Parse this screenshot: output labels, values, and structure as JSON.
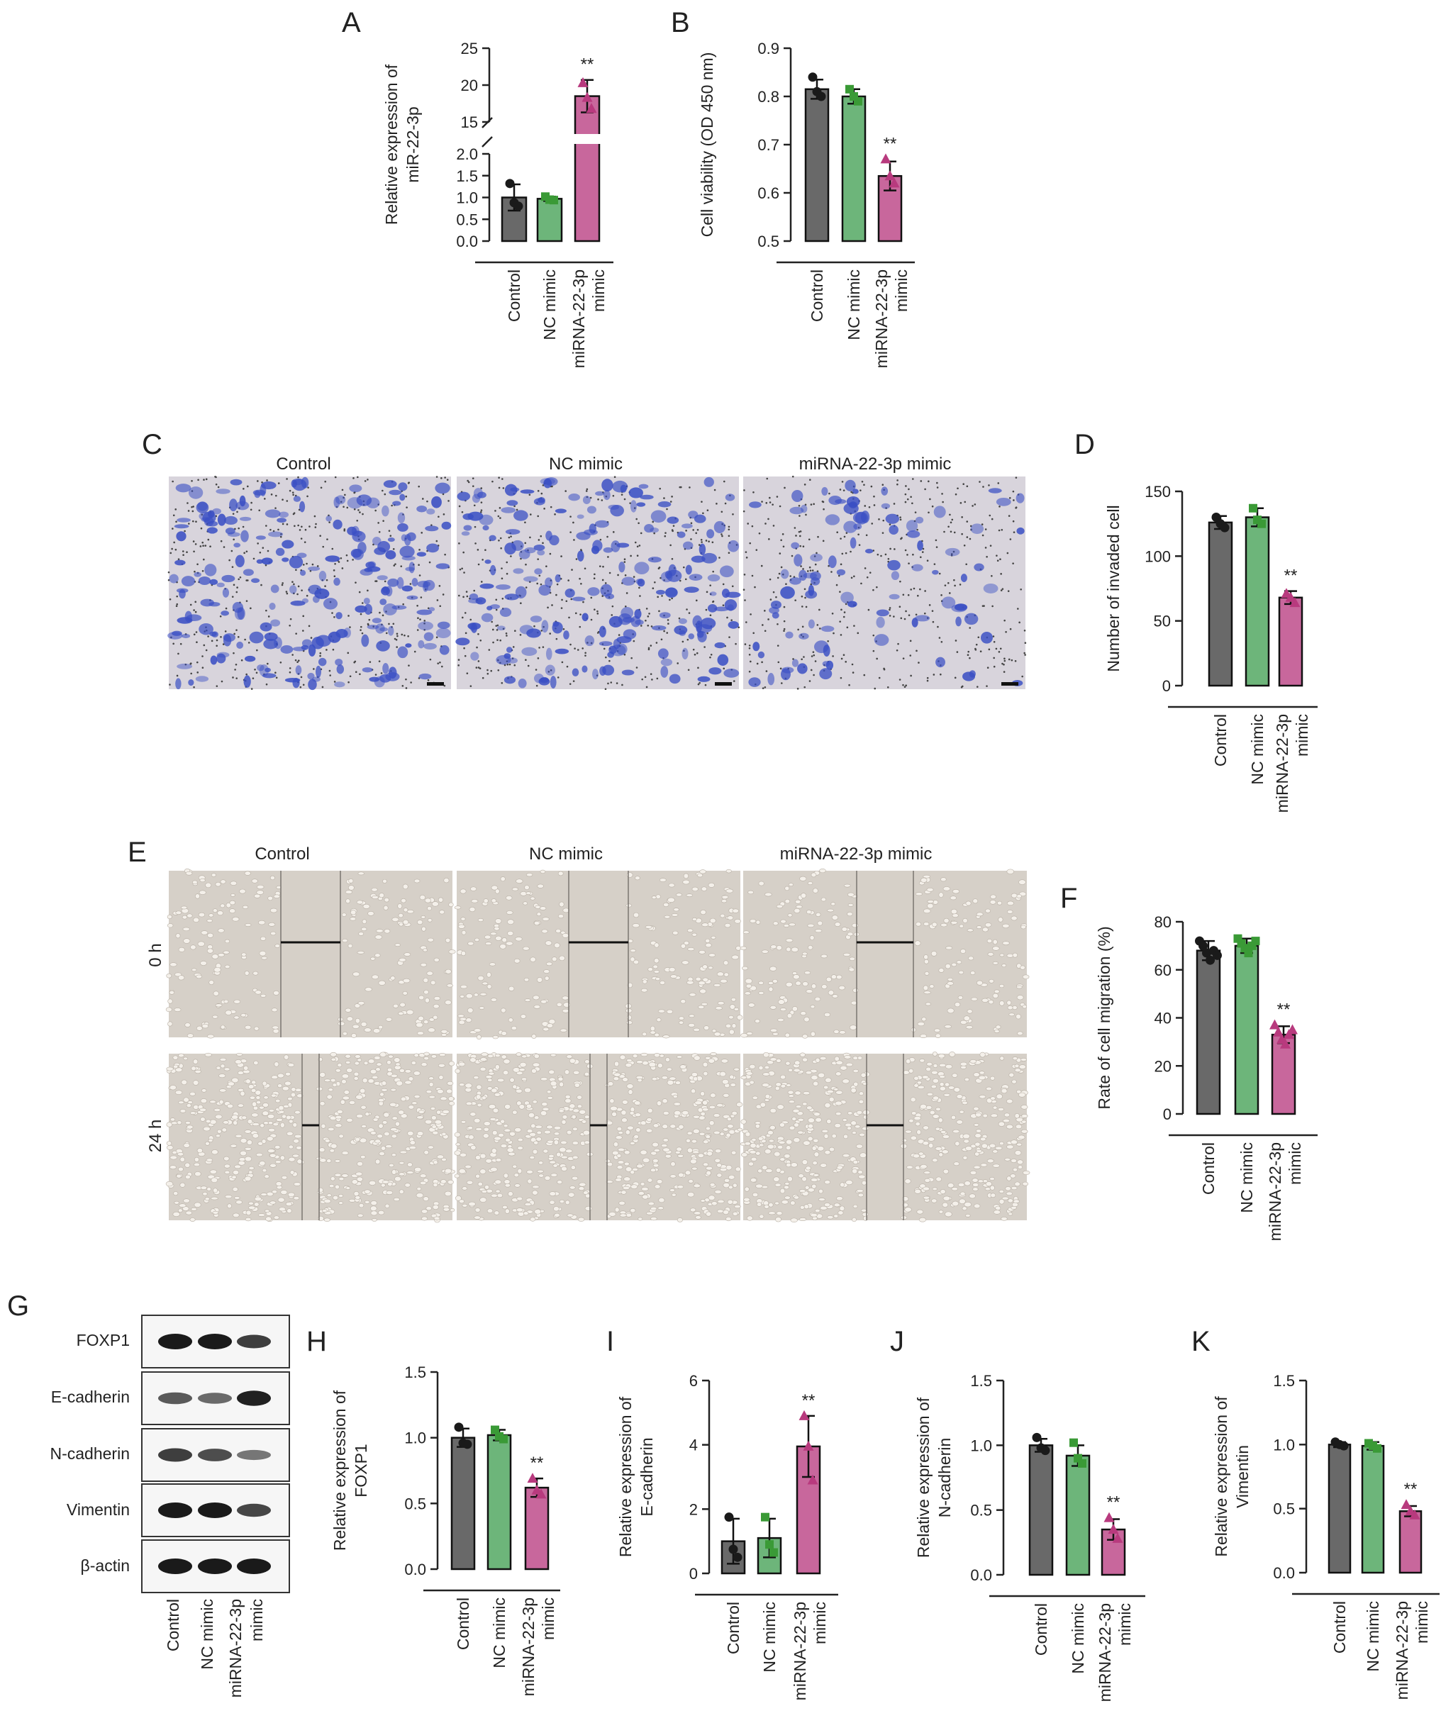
{
  "colors": {
    "control": "#696969",
    "nc_mimic": "#6db57a",
    "mimic": "#c8679c",
    "control_dot": "#1a1a1a",
    "nc_dot": "#3a9a36",
    "mimic_dot": "#b83a7e",
    "stain_bg": "#d8d4dc",
    "stain_cell": "#3a4fc4",
    "scratch_bg": "#d6d0c8",
    "blot_band": "#1a1a1a"
  },
  "panels": {
    "A": "A",
    "B": "B",
    "C": "C",
    "D": "D",
    "E": "E",
    "F": "F",
    "G": "G",
    "H": "H",
    "I": "I",
    "J": "J",
    "K": "K"
  },
  "images_c": {
    "columns": [
      "Control",
      "NC mimic",
      "miRNA-22-3p mimic"
    ]
  },
  "images_e": {
    "columns": [
      "Control",
      "NC mimic",
      "miRNA-22-3p mimic"
    ],
    "rows": [
      "0 h",
      "24 h"
    ],
    "gap_fraction": [
      [
        0.21,
        0.21,
        0.2
      ],
      [
        0.06,
        0.06,
        0.13
      ]
    ]
  },
  "blot_g": {
    "rows": [
      "FOXP1",
      "E-cadherin",
      "N-cadherin",
      "Vimentin",
      "β-actin"
    ],
    "lanes": [
      "Control",
      "NC mimic",
      "miRNA-22-3p mimic"
    ],
    "band_intensity": [
      [
        1.0,
        1.0,
        0.75
      ],
      [
        0.55,
        0.45,
        0.95
      ],
      [
        0.75,
        0.65,
        0.35
      ],
      [
        1.0,
        1.0,
        0.7
      ],
      [
        1.0,
        1.0,
        1.0
      ]
    ]
  },
  "chart_data": [
    {
      "panel": "A",
      "type": "bar",
      "categories": [
        "Control",
        "NC mimic",
        "miRNA-22-3p mimic"
      ],
      "values": [
        1.0,
        0.97,
        18.5
      ],
      "error": [
        0.3,
        0.05,
        2.2
      ],
      "points": [
        [
          1.32,
          0.88,
          0.8
        ],
        [
          1.02,
          0.95,
          0.94
        ],
        [
          20.3,
          18.3,
          16.8
        ]
      ],
      "ylabel": "Relative expression of miR-22-3p",
      "ylim": [
        0,
        25
      ],
      "axis_break": [
        2.0,
        15
      ],
      "yticks_lower": [
        "0.0",
        "0.5",
        "1.0",
        "1.5",
        "2.0"
      ],
      "yticks_upper": [
        "15",
        "20",
        "25"
      ],
      "significance": [
        "",
        "",
        "**"
      ]
    },
    {
      "panel": "B",
      "type": "bar",
      "categories": [
        "Control",
        "NC mimic",
        "miRNA-22-3p mimic"
      ],
      "values": [
        0.815,
        0.8,
        0.635
      ],
      "error": [
        0.02,
        0.015,
        0.03
      ],
      "points": [
        [
          0.84,
          0.81,
          0.8
        ],
        [
          0.815,
          0.8,
          0.79
        ],
        [
          0.67,
          0.635,
          0.62
        ]
      ],
      "ylabel": "Cell viability (OD 450 nm)",
      "ylim": [
        0.5,
        0.9
      ],
      "yticks": [
        "0.5",
        "0.6",
        "0.7",
        "0.8",
        "0.9"
      ],
      "significance": [
        "",
        "",
        "**"
      ]
    },
    {
      "panel": "D",
      "type": "bar",
      "categories": [
        "Control",
        "NC mimic",
        "miRNA-22-3p mimic"
      ],
      "values": [
        126,
        130,
        68
      ],
      "error": [
        5,
        7,
        5
      ],
      "points": [
        [
          130,
          125,
          122
        ],
        [
          137,
          128,
          125
        ],
        [
          71,
          68,
          64
        ]
      ],
      "ylabel": "Number of invaded cell",
      "ylim": [
        0,
        150
      ],
      "yticks": [
        "0",
        "50",
        "100",
        "150"
      ],
      "significance": [
        "",
        "",
        "**"
      ]
    },
    {
      "panel": "F",
      "type": "bar",
      "categories": [
        "Control",
        "NC mimic",
        "miRNA-22-3p mimic"
      ],
      "values": [
        68,
        70,
        33
      ],
      "error": [
        4,
        3,
        3.5
      ],
      "points": [
        [
          72,
          70,
          67,
          64,
          68,
          66
        ],
        [
          73,
          71,
          69,
          67,
          70,
          72
        ],
        [
          37,
          34,
          31,
          29,
          33,
          35
        ]
      ],
      "ylabel": "Rate of cell migration (%)",
      "ylim": [
        0,
        80
      ],
      "yticks": [
        "0",
        "20",
        "40",
        "60",
        "80"
      ],
      "significance": [
        "",
        "",
        "**"
      ]
    },
    {
      "panel": "H",
      "type": "bar",
      "categories": [
        "Control",
        "NC mimic",
        "miRNA-22-3p mimic"
      ],
      "values": [
        1.0,
        1.02,
        0.62
      ],
      "error": [
        0.07,
        0.04,
        0.07
      ],
      "points": [
        [
          1.08,
          0.96,
          0.95
        ],
        [
          1.06,
          1.01,
          0.99
        ],
        [
          0.69,
          0.6,
          0.57
        ]
      ],
      "ylabel": "Relative expression of FOXP1",
      "ylim": [
        0,
        1.5
      ],
      "yticks": [
        "0.0",
        "0.5",
        "1.0",
        "1.5"
      ],
      "significance": [
        "",
        "",
        "**"
      ]
    },
    {
      "panel": "I",
      "type": "bar",
      "categories": [
        "Control",
        "NC mimic",
        "miRNA-22-3p mimic"
      ],
      "values": [
        1.0,
        1.1,
        3.95
      ],
      "error": [
        0.7,
        0.6,
        0.95
      ],
      "points": [
        [
          1.75,
          0.75,
          0.5
        ],
        [
          1.75,
          0.9,
          0.65
        ],
        [
          4.9,
          3.95,
          2.9
        ]
      ],
      "ylabel": "Relative expression of E-cadherin",
      "ylim": [
        0,
        6
      ],
      "yticks": [
        "0",
        "2",
        "4",
        "6"
      ],
      "significance": [
        "",
        "",
        "**"
      ]
    },
    {
      "panel": "J",
      "type": "bar",
      "categories": [
        "Control",
        "NC mimic",
        "miRNA-22-3p mimic"
      ],
      "values": [
        1.0,
        0.92,
        0.35
      ],
      "error": [
        0.05,
        0.08,
        0.08
      ],
      "points": [
        [
          1.06,
          0.98,
          0.96
        ],
        [
          1.02,
          0.9,
          0.86
        ],
        [
          0.44,
          0.35,
          0.28
        ]
      ],
      "ylabel": "Relative expression of N-cadherin",
      "ylim": [
        0,
        1.5
      ],
      "yticks": [
        "0.0",
        "0.5",
        "1.0",
        "1.5"
      ],
      "significance": [
        "",
        "",
        "**"
      ]
    },
    {
      "panel": "K",
      "type": "bar",
      "categories": [
        "Control",
        "NC mimic",
        "miRNA-22-3p mimic"
      ],
      "values": [
        1.0,
        0.99,
        0.48
      ],
      "error": [
        0.02,
        0.03,
        0.04
      ],
      "points": [
        [
          1.02,
          1.0,
          0.99
        ],
        [
          1.01,
          0.99,
          0.97
        ],
        [
          0.53,
          0.48,
          0.45
        ]
      ],
      "ylabel": "Relative expression of Vimentin",
      "ylim": [
        0,
        1.5
      ],
      "yticks": [
        "0.0",
        "0.5",
        "1.0",
        "1.5"
      ],
      "significance": [
        "",
        "",
        "**"
      ]
    }
  ]
}
